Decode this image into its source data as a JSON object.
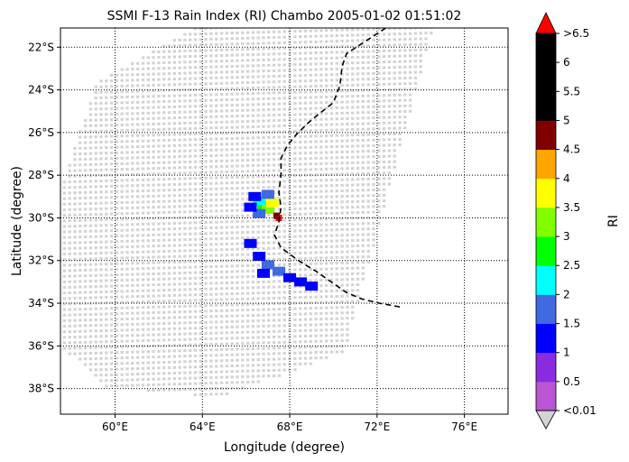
{
  "chart_data": {
    "type": "heatmap",
    "title": "SSMI F-13 Rain Index (RI) Chambo 2005-01-02 01:51:02",
    "xlabel": "Longitude (degree)",
    "ylabel": "Latitude (degree)",
    "xlim": [
      57.5,
      78
    ],
    "ylim": [
      -39.2,
      -21.1
    ],
    "x_ticks": [
      {
        "value": 60,
        "label": "60°E"
      },
      {
        "value": 64,
        "label": "64°E"
      },
      {
        "value": 68,
        "label": "68°E"
      },
      {
        "value": 72,
        "label": "72°E"
      },
      {
        "value": 76,
        "label": "76°E"
      }
    ],
    "y_ticks": [
      {
        "value": -22,
        "label": "22°S"
      },
      {
        "value": -24,
        "label": "24°S"
      },
      {
        "value": -26,
        "label": "26°S"
      },
      {
        "value": -28,
        "label": "28°S"
      },
      {
        "value": -30,
        "label": "30°S"
      },
      {
        "value": -32,
        "label": "32°S"
      },
      {
        "value": -34,
        "label": "34°S"
      },
      {
        "value": -36,
        "label": "36°S"
      },
      {
        "value": -38,
        "label": "38°S"
      }
    ],
    "grid": true,
    "colorbar": {
      "label": "RI",
      "under_label": "<0.01",
      "over_label": ">6.5",
      "under_color": "#d3d3d3",
      "over_color": "#ff0000",
      "bounds": [
        0.01,
        0.5,
        1,
        1.5,
        2,
        2.5,
        3,
        3.5,
        4,
        4.5,
        5,
        5.5,
        6,
        6.5
      ],
      "tick_labels": [
        "<0.01",
        "0.5",
        "1",
        "1.5",
        "2",
        "2.5",
        "3",
        "3.5",
        "4",
        "4.5",
        "5",
        "5.5",
        "6",
        ">6.5"
      ],
      "colors": [
        "#ba55d3",
        "#8a2be2",
        "#0000ff",
        "#4169e1",
        "#00ffff",
        "#00ff00",
        "#7fff00",
        "#ffff00",
        "#ffa500",
        "#800000",
        "#000000",
        "#000000",
        "#000000"
      ]
    },
    "swath": {
      "color": "#d3d3d3",
      "polygon": [
        [
          63.8,
          -21.0
        ],
        [
          74.6,
          -21.0
        ],
        [
          70.5,
          -36.3
        ],
        [
          64.8,
          -38.4
        ],
        [
          59.5,
          -37.9
        ],
        [
          57.4,
          -35.9
        ],
        [
          57.4,
          -28.9
        ],
        [
          59.2,
          -23.6
        ]
      ]
    },
    "track": {
      "style": "dashed",
      "color": "#000000",
      "points": [
        [
          72.4,
          -21.1
        ],
        [
          71.8,
          -21.5
        ],
        [
          71.2,
          -21.9
        ],
        [
          70.6,
          -22.3
        ],
        [
          70.4,
          -22.9
        ],
        [
          70.3,
          -23.8
        ],
        [
          70.0,
          -24.6
        ],
        [
          69.5,
          -25.0
        ],
        [
          68.9,
          -25.5
        ],
        [
          68.3,
          -26.1
        ],
        [
          67.9,
          -26.6
        ],
        [
          67.6,
          -27.2
        ],
        [
          67.6,
          -28.0
        ],
        [
          67.5,
          -28.8
        ],
        [
          67.6,
          -29.5
        ],
        [
          67.5,
          -30.2
        ],
        [
          67.3,
          -30.8
        ],
        [
          67.6,
          -31.4
        ],
        [
          68.4,
          -32.0
        ],
        [
          69.2,
          -32.5
        ],
        [
          69.9,
          -33.0
        ],
        [
          70.6,
          -33.5
        ],
        [
          71.3,
          -33.8
        ],
        [
          72.1,
          -34.0
        ],
        [
          73.2,
          -34.2
        ]
      ]
    },
    "rain_cells": [
      {
        "lon": 66.8,
        "lat": -29.4,
        "ri": 2.8
      },
      {
        "lon": 67.0,
        "lat": -29.6,
        "ri": 3.2
      },
      {
        "lon": 66.6,
        "lat": -29.2,
        "ri": 2.2
      },
      {
        "lon": 67.2,
        "lat": -29.3,
        "ri": 3.6
      },
      {
        "lon": 66.6,
        "lat": -29.8,
        "ri": 1.8
      },
      {
        "lon": 66.4,
        "lat": -29.0,
        "ri": 1.2
      },
      {
        "lon": 66.2,
        "lat": -29.5,
        "ri": 1.0
      },
      {
        "lon": 67.0,
        "lat": -28.9,
        "ri": 1.6
      },
      {
        "lon": 67.5,
        "lat": -30.0,
        "ri": 6.8
      },
      {
        "lon": 67.4,
        "lat": -29.9,
        "ri": 4.8
      },
      {
        "lon": 67.0,
        "lat": -32.2,
        "ri": 1.7
      },
      {
        "lon": 67.5,
        "lat": -32.5,
        "ri": 1.6
      },
      {
        "lon": 68.0,
        "lat": -32.8,
        "ri": 1.3
      },
      {
        "lon": 68.5,
        "lat": -33.0,
        "ri": 1.2
      },
      {
        "lon": 66.6,
        "lat": -31.8,
        "ri": 1.2
      },
      {
        "lon": 66.2,
        "lat": -31.2,
        "ri": 1.1
      },
      {
        "lon": 66.8,
        "lat": -32.6,
        "ri": 1.1
      },
      {
        "lon": 69.0,
        "lat": -33.2,
        "ri": 1.1
      }
    ]
  }
}
